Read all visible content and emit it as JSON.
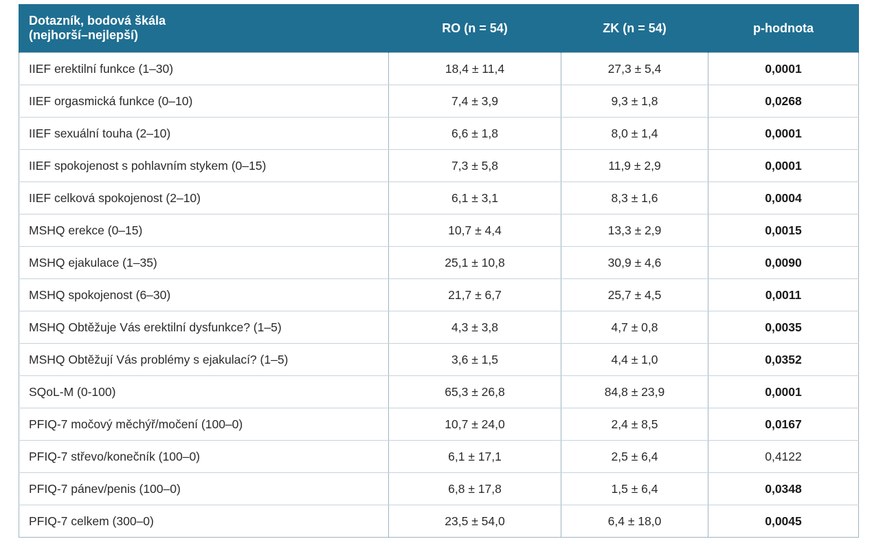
{
  "table": {
    "headers": {
      "questionnaire_line1": "Dotazník, bodová škála",
      "questionnaire_line2": "(nejhorší–nejlepší)",
      "ro": "RO (n = 54)",
      "zk": "ZK (n = 54)",
      "p": "p-hodnota"
    },
    "rows": [
      {
        "label": "IIEF erektilní funkce (1–30)",
        "ro": "18,4 ± 11,4",
        "zk": "27,3 ± 5,4",
        "p": "0,0001",
        "p_bold": true
      },
      {
        "label": "IIEF orgasmická funkce (0–10)",
        "ro": "7,4 ± 3,9",
        "zk": "9,3 ± 1,8",
        "p": "0,0268",
        "p_bold": true
      },
      {
        "label": "IIEF sexuální touha (2–10)",
        "ro": "6,6 ± 1,8",
        "zk": "8,0 ± 1,4",
        "p": "0,0001",
        "p_bold": true
      },
      {
        "label": "IIEF spokojenost s pohlavním stykem (0–15)",
        "ro": "7,3 ± 5,8",
        "zk": "11,9 ± 2,9",
        "p": "0,0001",
        "p_bold": true
      },
      {
        "label": "IIEF celková spokojenost (2–10)",
        "ro": "6,1 ± 3,1",
        "zk": "8,3 ± 1,6",
        "p": "0,0004",
        "p_bold": true
      },
      {
        "label": "MSHQ erekce (0–15)",
        "ro": "10,7 ± 4,4",
        "zk": "13,3 ± 2,9",
        "p": "0,0015",
        "p_bold": true
      },
      {
        "label": "MSHQ ejakulace (1–35)",
        "ro": "25,1 ± 10,8",
        "zk": "30,9 ± 4,6",
        "p": "0,0090",
        "p_bold": true
      },
      {
        "label": "MSHQ spokojenost (6–30)",
        "ro": "21,7 ± 6,7",
        "zk": "25,7 ± 4,5",
        "p": "0,0011",
        "p_bold": true
      },
      {
        "label": "MSHQ Obtěžuje Vás erektilní dysfunkce? (1–5)",
        "ro": "4,3 ± 3,8",
        "zk": "4,7 ± 0,8",
        "p": "0,0035",
        "p_bold": true
      },
      {
        "label": "MSHQ Obtěžují Vás problémy s ejakulací? (1–5)",
        "ro": "3,6 ± 1,5",
        "zk": "4,4 ± 1,0",
        "p": "0,0352",
        "p_bold": true
      },
      {
        "label": "SQoL-M (0-100)",
        "ro": "65,3 ± 26,8",
        "zk": "84,8 ± 23,9",
        "p": "0,0001",
        "p_bold": true
      },
      {
        "label": "PFIQ-7 močový měchýř/močení (100–0)",
        "ro": "10,7 ± 24,0",
        "zk": "2,4 ± 8,5",
        "p": "0,0167",
        "p_bold": true
      },
      {
        "label": "PFIQ-7 střevo/konečník (100–0)",
        "ro": "6,1 ± 17,1",
        "zk": "2,5 ± 6,4",
        "p": "0,4122",
        "p_bold": false
      },
      {
        "label": "PFIQ-7 pánev/penis (100–0)",
        "ro": "6,8 ± 17,8",
        "zk": "1,5 ± 6,4",
        "p": "0,0348",
        "p_bold": true
      },
      {
        "label": "PFIQ-7 celkem (300–0)",
        "ro": "23,5 ± 54,0",
        "zk": "6,4 ± 18,0",
        "p": "0,0045",
        "p_bold": true
      }
    ]
  },
  "colors": {
    "header_bg": "#1f6f92",
    "header_text": "#ffffff",
    "row_text": "#2b2b2b"
  }
}
